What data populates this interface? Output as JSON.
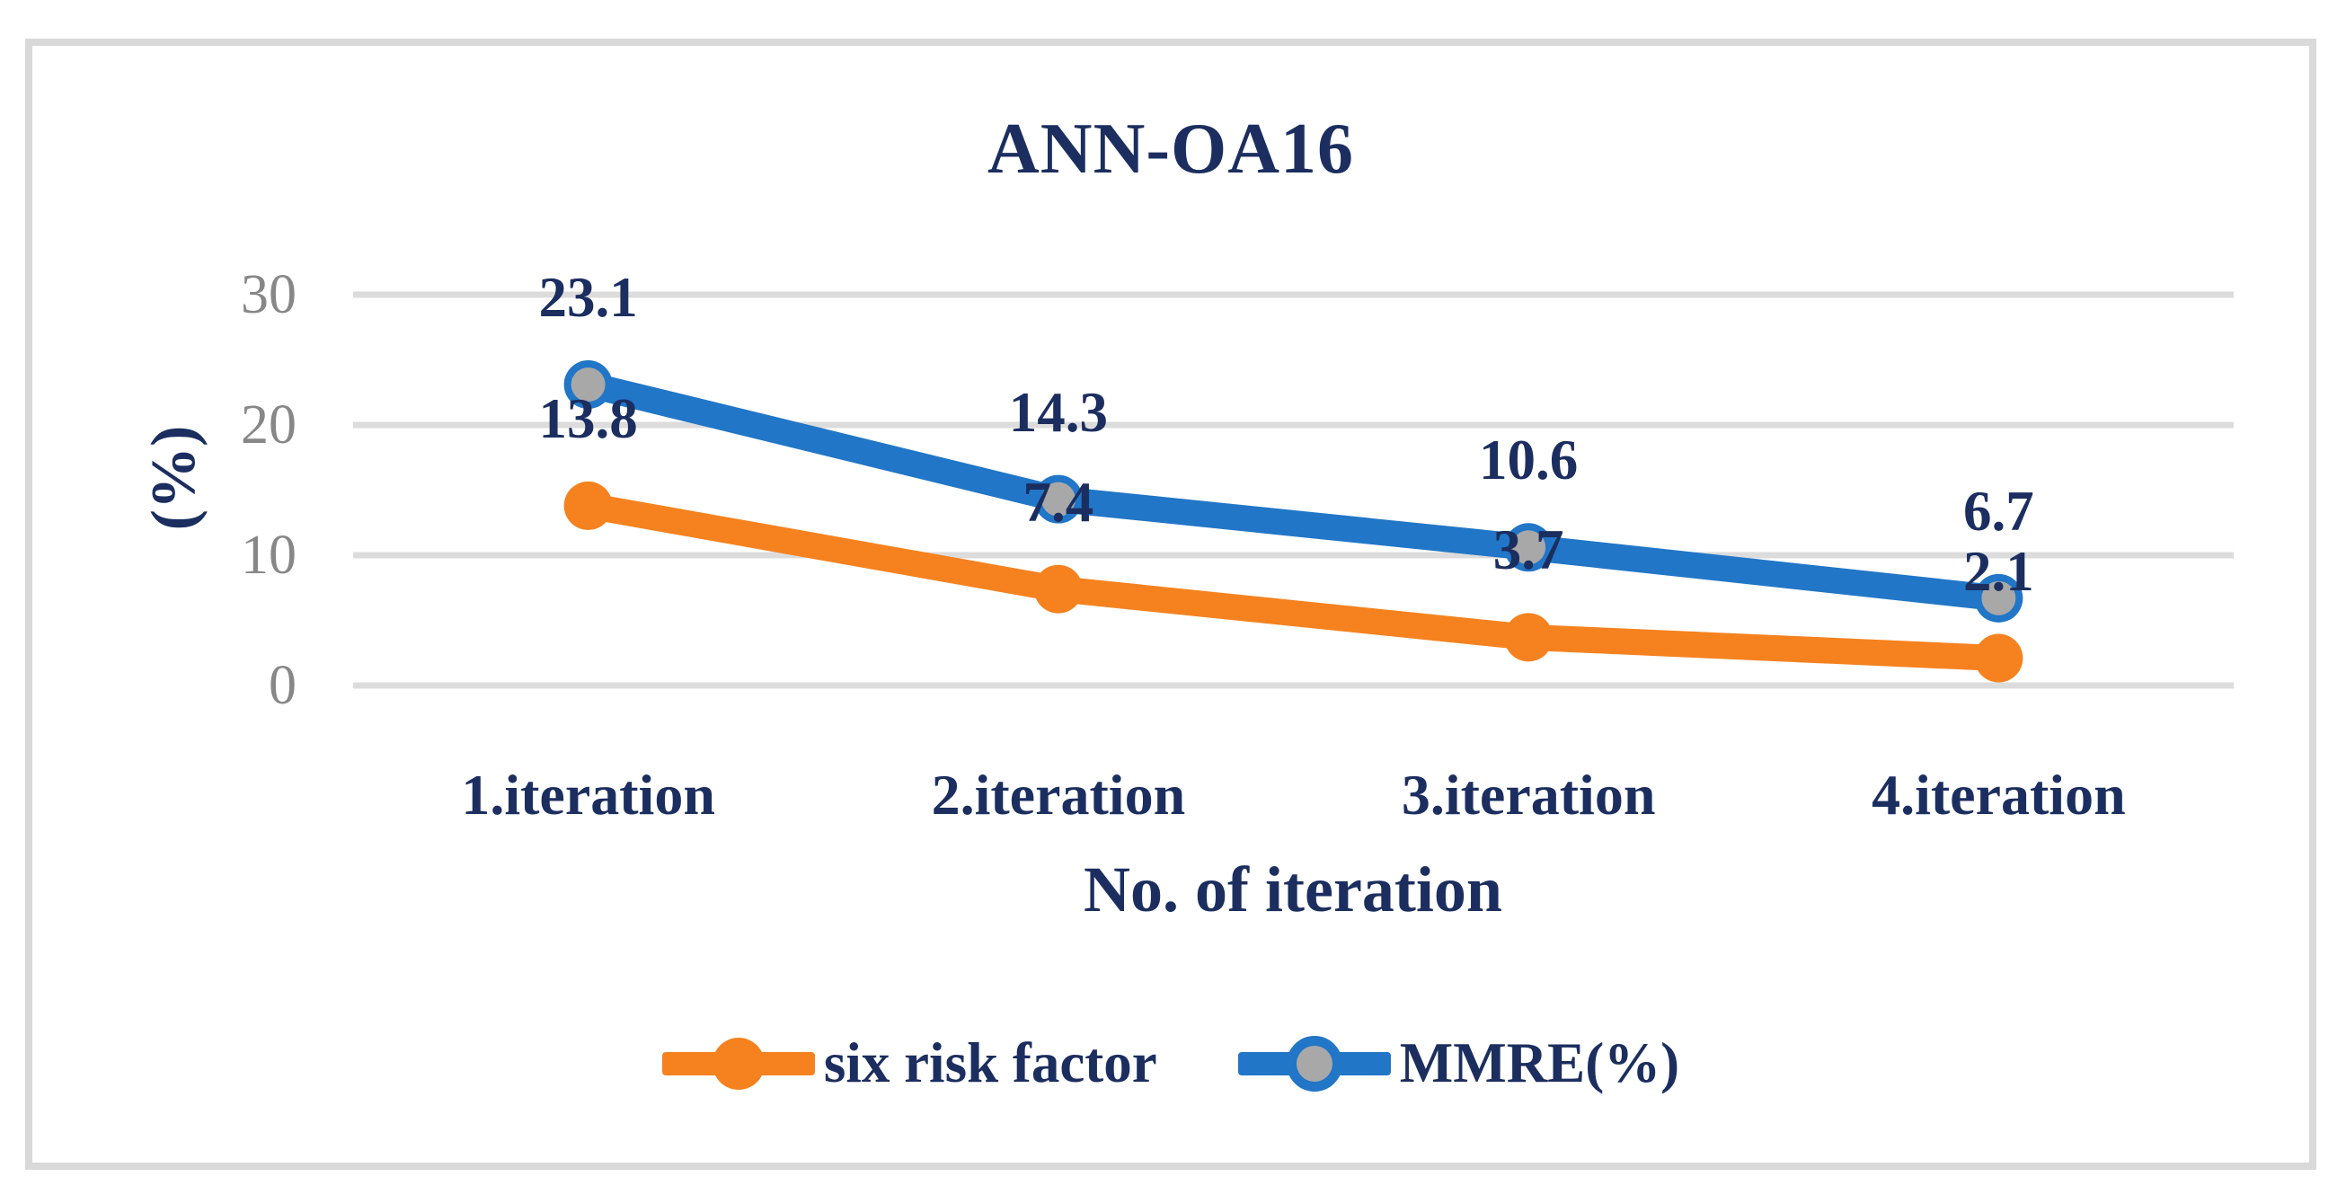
{
  "chart": {
    "title": "ANN-OA16",
    "y_axis": {
      "title": "(%)",
      "tick_labels": [
        "30",
        "20",
        "10",
        "0"
      ]
    },
    "x_axis": {
      "title": "No. of iteration",
      "category_labels": [
        "1.iteration",
        "2.iteration",
        "3.iteration",
        "4.iteration"
      ]
    },
    "legend_items": [
      "six risk factor",
      "MMRE(%)"
    ]
  },
  "chart_data": {
    "type": "line",
    "title": "ANN-OA16",
    "categories": [
      "1.iteration",
      "2.iteration",
      "3.iteration",
      "4.iteration"
    ],
    "series": [
      {
        "name": "six risk factor",
        "values": [
          13.8,
          7.4,
          3.7,
          2.1
        ],
        "color": "#F5821F",
        "marker_fill": "#F5821F",
        "marker_style": "solid"
      },
      {
        "name": "MMRE(%)",
        "values": [
          23.1,
          14.3,
          10.6,
          6.7
        ],
        "color": "#2176C7",
        "marker_fill": "#A8A8A8",
        "marker_style": "ringed"
      }
    ],
    "xlabel": "No. of iteration",
    "ylabel": "(%)",
    "ylim": [
      0,
      30
    ],
    "yticks": [
      0,
      10,
      20,
      30
    ],
    "grid": true,
    "data_labels": true,
    "legend_position": "bottom"
  },
  "colors": {
    "navy_text": "#1B2E5F",
    "tick_gray": "#878787",
    "gridline": "#DCDCDC",
    "frame_border": "#D9D9D9",
    "series_orange": "#F5821F",
    "series_blue": "#2176C7",
    "marker_gray": "#A8A8A8",
    "background": "#FFFFFF"
  }
}
